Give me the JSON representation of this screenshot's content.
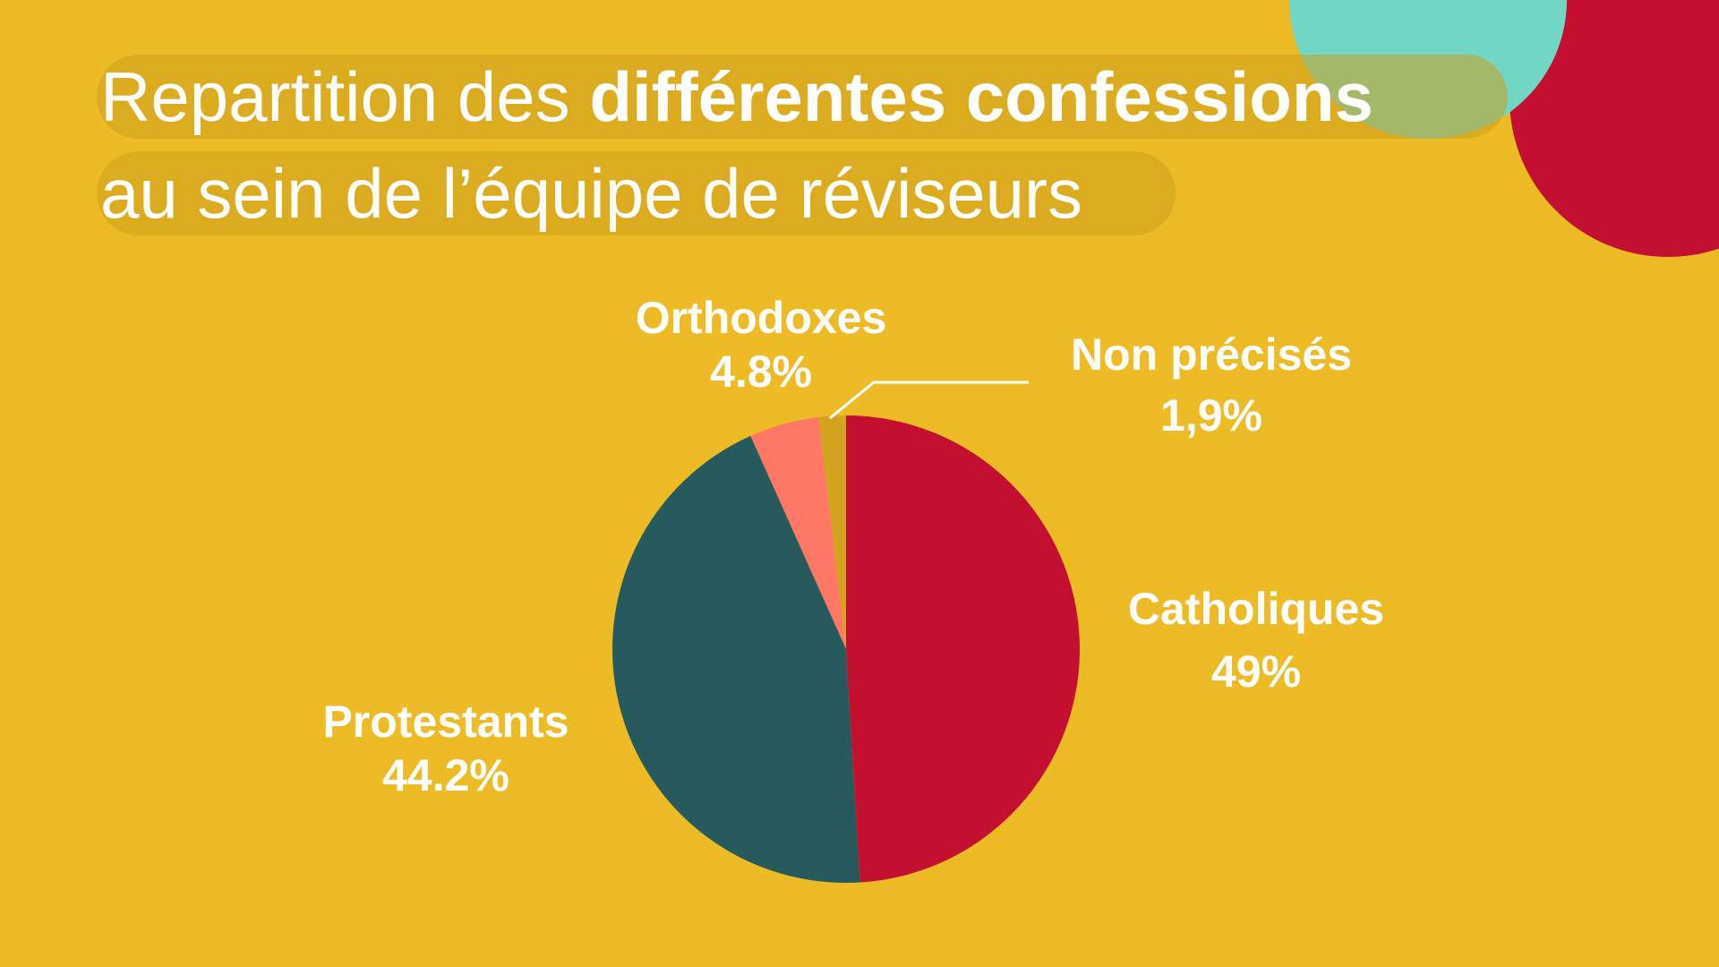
{
  "title": {
    "line1_light": "Repartition des ",
    "line1_bold": "différentes confessions",
    "line2": "au sein de l’équipe de réviseurs"
  },
  "chart_data": {
    "type": "pie",
    "start": "top",
    "direction": "clockwise",
    "slices": [
      {
        "name": "Catholiques",
        "value": 49,
        "label": "49%",
        "color": "#C41030"
      },
      {
        "name": "Protestants",
        "value": 44.2,
        "label": "44.2%",
        "color": "#265A5C"
      },
      {
        "name": "Orthodoxes",
        "value": 4.8,
        "label": "4.8%",
        "color": "#FF7866"
      },
      {
        "name": "Non précisés",
        "value": 1.9,
        "label": "1,9%",
        "color": "#D4A31F"
      }
    ]
  },
  "colors": {
    "background": "#EDBB25",
    "decor_teal": "#72D6C5",
    "decor_red": "#C41030"
  }
}
